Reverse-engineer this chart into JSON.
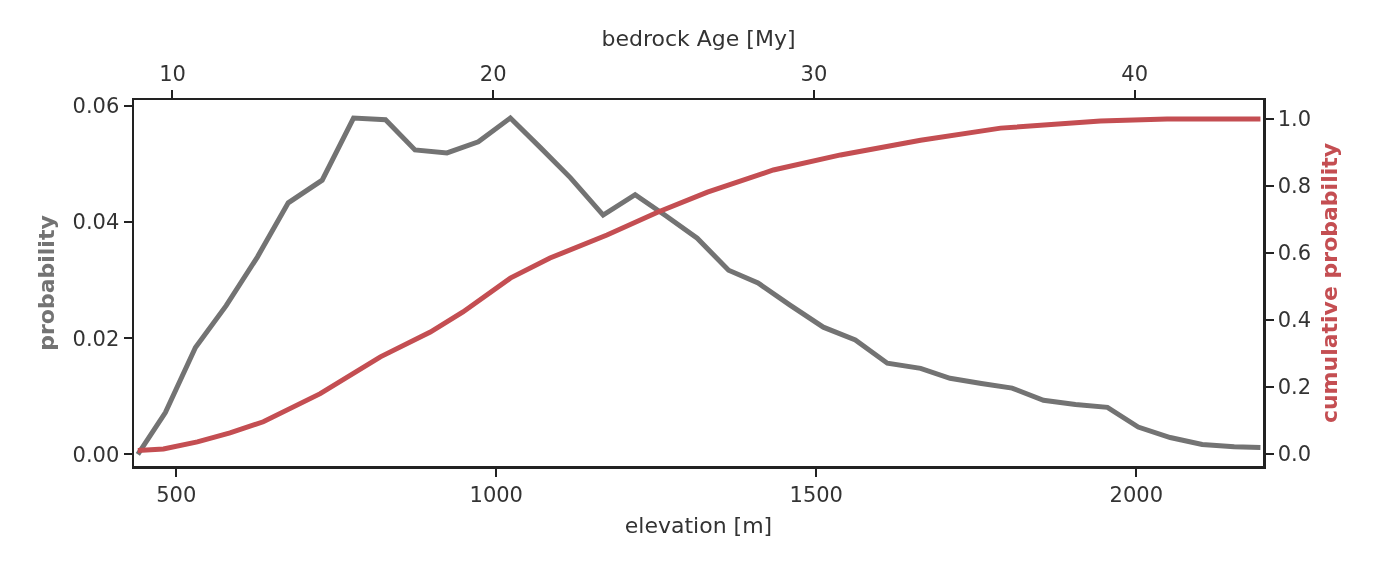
{
  "chart_data": {
    "type": "line",
    "xlabel": "elevation [m]",
    "ylabel": "probability",
    "y2label": "cumulative probability",
    "x2label": "bedrock Age [My]",
    "xlim": [
      434,
      2198
    ],
    "xticks": [
      500,
      1000,
      1500,
      2000
    ],
    "x2lim": [
      8.8,
      44.0
    ],
    "x2ticks": [
      10,
      20,
      30,
      40
    ],
    "ylim": [
      -0.002,
      0.061
    ],
    "yticks": [
      {
        "value": 0,
        "label": "0.00"
      },
      {
        "value": 0.02,
        "label": "0.02"
      },
      {
        "value": 0.04,
        "label": "0.04"
      },
      {
        "value": 0.06,
        "label": "0.06"
      }
    ],
    "y2lim": [
      -0.036,
      1.057
    ],
    "y2ticks": [
      {
        "value": 0,
        "label": "0.0"
      },
      {
        "value": 0.2,
        "label": "0.2"
      },
      {
        "value": 0.4,
        "label": "0.4"
      },
      {
        "value": 0.6,
        "label": "0.6"
      },
      {
        "value": 0.8,
        "label": "0.8"
      },
      {
        "value": 1,
        "label": "1.0"
      }
    ],
    "grid": false,
    "marker": "none",
    "line_style": "solid",
    "series": [
      {
        "color": "#737373",
        "x": [
          440,
          483,
          530,
          578,
          627,
          675,
          728,
          777,
          827,
          873,
          923,
          972,
          1022,
          1069,
          1116,
          1167,
          1217,
          1266,
          1314,
          1363,
          1409,
          1459,
          1511,
          1561,
          1611,
          1663,
          1709,
          1758,
          1806,
          1855,
          1905,
          1955,
          2003,
          2053,
          2103,
          2153,
          2194
        ],
        "values": [
          0.0,
          0.0072,
          0.0184,
          0.0256,
          0.034,
          0.0433,
          0.0472,
          0.0579,
          0.0576,
          0.0524,
          0.0519,
          0.0538,
          0.0579,
          0.0528,
          0.0476,
          0.0412,
          0.0447,
          0.041,
          0.0372,
          0.0317,
          0.0295,
          0.0257,
          0.0219,
          0.0197,
          0.0157,
          0.0148,
          0.0131,
          0.0122,
          0.0114,
          0.0093,
          0.0086,
          0.0081,
          0.0047,
          0.0029,
          0.0017,
          0.0013,
          0.0012
        ]
      },
      {
        "color": "#c44e52",
        "axis": "y2",
        "x": [
          440,
          480,
          533,
          584,
          636,
          725,
          819,
          897,
          948,
          1022,
          1084,
          1173,
          1252,
          1330,
          1433,
          1538,
          1663,
          1788,
          1944,
          2048,
          2194
        ],
        "values": [
          0.01,
          0.015,
          0.036,
          0.063,
          0.096,
          0.18,
          0.29,
          0.364,
          0.424,
          0.525,
          0.585,
          0.654,
          0.722,
          0.782,
          0.848,
          0.893,
          0.937,
          0.973,
          0.994,
          1.0,
          1.0
        ]
      }
    ]
  }
}
